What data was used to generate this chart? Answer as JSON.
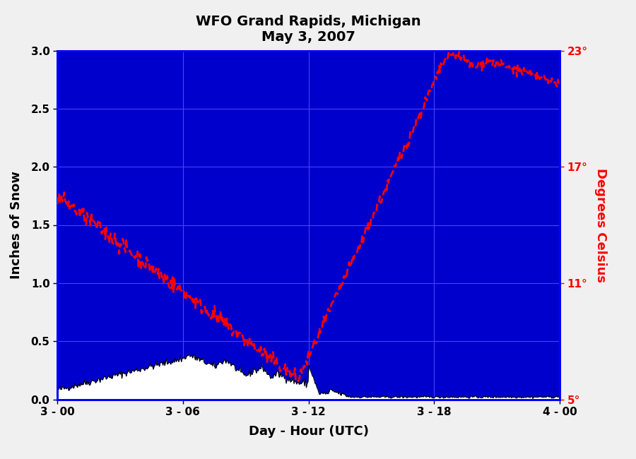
{
  "title_line1": "WFO Grand Rapids, Michigan",
  "title_line2": "May 3, 2007",
  "xlabel": "Day - Hour (UTC)",
  "ylabel_left": "Inches of Snow",
  "ylabel_right": "Degrees Celsius",
  "bg_color": "#0000cc",
  "outer_bg_color": "#f0f0f0",
  "snow_fill_color": "#ffffff",
  "snow_line_color": "#000000",
  "temp_line_color": "#ff0000",
  "grid_color": "#4444ff",
  "ylim_left": [
    0.0,
    3.0
  ],
  "ylim_right": [
    5,
    23
  ],
  "xlim": [
    0,
    24
  ],
  "xtick_positions": [
    0,
    6,
    12,
    18,
    24
  ],
  "xtick_labels": [
    "3 - 00",
    "3 - 06",
    "3 - 12",
    "3 - 18",
    "4 - 00"
  ],
  "ytick_left_positions": [
    0.0,
    0.5,
    1.0,
    1.5,
    2.0,
    2.5,
    3.0
  ],
  "ytick_left_labels": [
    "0.0",
    "0.5",
    "1.0",
    "1.5",
    "2.0",
    "2.5",
    "3.0"
  ],
  "ytick_right_positions": [
    5,
    11,
    17,
    23
  ],
  "ytick_right_labels": [
    "5°",
    "11°",
    "17°",
    "23°"
  ],
  "temp_start": 15.5,
  "temp_min": 6.0,
  "temp_min_hour": 11.5,
  "temp_peak": 22.5,
  "temp_peak_hour": 19.5,
  "temp_end": 21.5,
  "snow_start": 0.08,
  "snow_peak": 0.35,
  "snow_peak_hour": 6.0,
  "snow_mid_low": 0.12,
  "snow_end": 0.02
}
